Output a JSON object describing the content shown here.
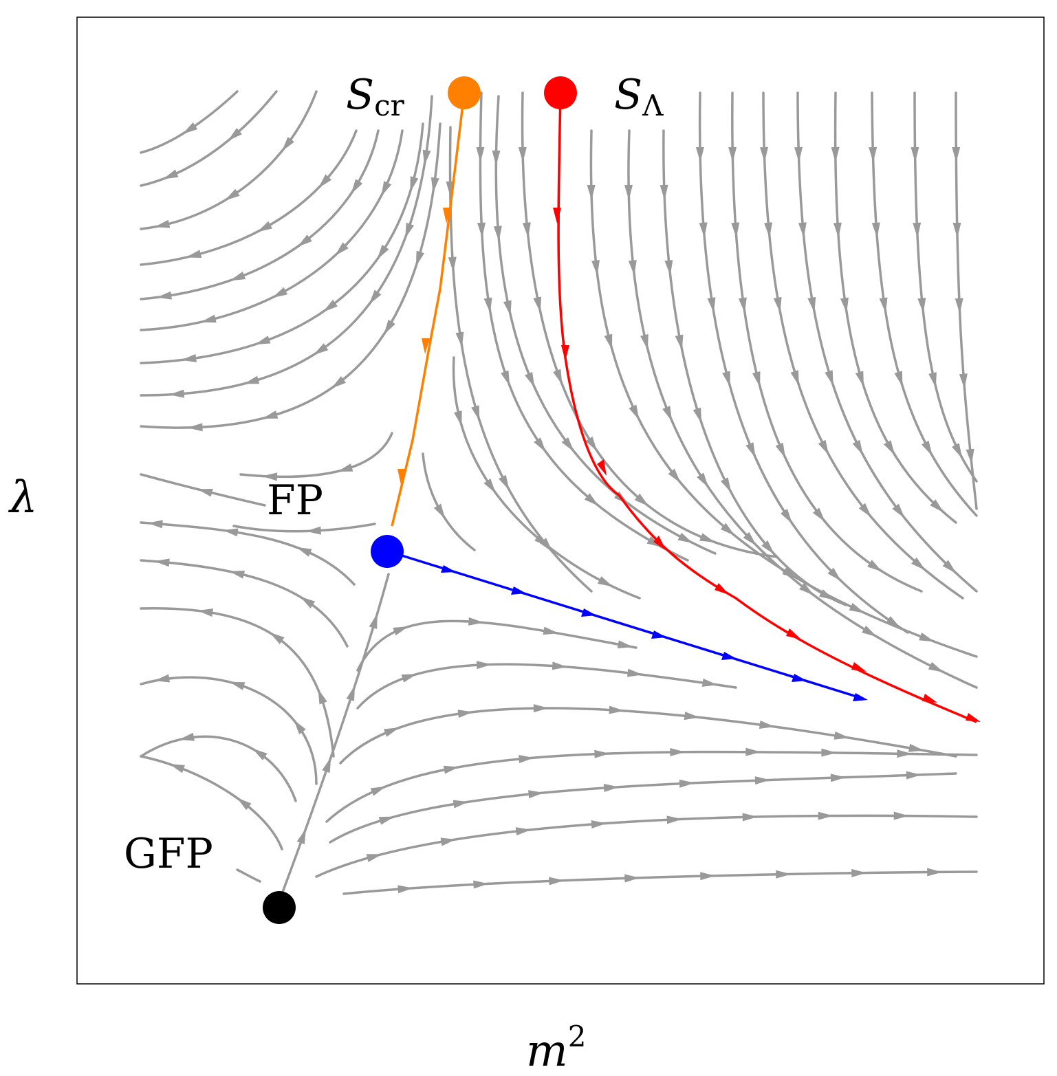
{
  "axes": {
    "x_label": "m",
    "x_label_sup": "2",
    "y_label": "λ"
  },
  "points": {
    "gfp": {
      "label": "GFP",
      "color": "#000000"
    },
    "fp": {
      "label": "FP",
      "color": "#0000ff"
    },
    "s_cr": {
      "label": "S",
      "label_sub": "cr",
      "color": "#ff8000"
    },
    "s_lambda": {
      "label": "S",
      "label_sub": "Λ",
      "color": "#ff0000"
    }
  },
  "colors": {
    "stream": "#999999",
    "frame": "#000000",
    "critical_flow": "#ff8000",
    "uv_flow": "#ff0000",
    "ir_flow": "#0000ff"
  }
}
